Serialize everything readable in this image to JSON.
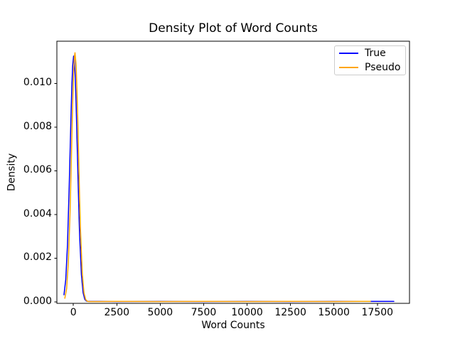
{
  "chart_data": {
    "type": "line",
    "title": "Density Plot of Word Counts",
    "xlabel": "Word Counts",
    "ylabel": "Density",
    "xlim": [
      -950,
      19350
    ],
    "ylim": [
      -7e-05,
      0.01193
    ],
    "grid": false,
    "legend_position": "upper right",
    "x_ticks": [
      0,
      2500,
      5000,
      7500,
      10000,
      12500,
      15000,
      17500
    ],
    "x_tick_labels": [
      "0",
      "2500",
      "5000",
      "7500",
      "10000",
      "12500",
      "15000",
      "17500"
    ],
    "y_ticks": [
      0,
      0.002,
      0.004,
      0.006,
      0.008,
      0.01
    ],
    "y_tick_labels": [
      "0.000",
      "0.002",
      "0.004",
      "0.006",
      "0.008",
      "0.010"
    ],
    "series": [
      {
        "name": "True",
        "color": "#0000ff",
        "peak": {
          "x": 20,
          "y": 0.01125
        },
        "points": [
          [
            -540,
            0.00032
          ],
          [
            -440,
            0.00102
          ],
          [
            -340,
            0.00259
          ],
          [
            -240,
            0.00523
          ],
          [
            -140,
            0.00842
          ],
          [
            -90,
            0.00981
          ],
          [
            -40,
            0.0108
          ],
          [
            10,
            0.01124
          ],
          [
            20,
            0.01125
          ],
          [
            60,
            0.01105
          ],
          [
            110,
            0.01026
          ],
          [
            160,
            0.00901
          ],
          [
            210,
            0.00747
          ],
          [
            260,
            0.00585
          ],
          [
            310,
            0.00434
          ],
          [
            360,
            0.00303
          ],
          [
            460,
            0.00125
          ],
          [
            560,
            0.00041
          ],
          [
            660,
            0.00011
          ],
          [
            760,
            3e-05
          ],
          [
            860,
            2e-05
          ],
          [
            960,
            2e-05
          ],
          [
            1500,
            2e-05
          ],
          [
            2500,
            1e-05
          ],
          [
            5000,
            2e-05
          ],
          [
            7500,
            1e-05
          ],
          [
            10000,
            2e-05
          ],
          [
            12500,
            1e-05
          ],
          [
            15000,
            2e-05
          ],
          [
            17000,
            2e-05
          ],
          [
            18450,
            2e-05
          ]
        ]
      },
      {
        "name": "Pseudo",
        "color": "#ffa500",
        "peak": {
          "x": 95,
          "y": 0.0114
        },
        "points": [
          [
            -490,
            0.00016
          ],
          [
            -390,
            0.0006
          ],
          [
            -290,
            0.00179
          ],
          [
            -190,
            0.00413
          ],
          [
            -90,
            0.00743
          ],
          [
            -40,
            0.00908
          ],
          [
            10,
            0.01042
          ],
          [
            60,
            0.01123
          ],
          [
            95,
            0.0114
          ],
          [
            160,
            0.01081
          ],
          [
            210,
            0.00966
          ],
          [
            260,
            0.00811
          ],
          [
            310,
            0.0064
          ],
          [
            360,
            0.00474
          ],
          [
            410,
            0.0033
          ],
          [
            510,
            0.00132
          ],
          [
            610,
            0.00041
          ],
          [
            710,
            0.0001
          ],
          [
            810,
            2e-05
          ],
          [
            910,
            1e-05
          ],
          [
            1010,
            1e-05
          ],
          [
            1500,
            1e-05
          ],
          [
            2500,
            2e-05
          ],
          [
            5000,
            1e-05
          ],
          [
            7500,
            2e-05
          ],
          [
            10000,
            1e-05
          ],
          [
            12500,
            2e-05
          ],
          [
            15000,
            1e-05
          ],
          [
            17100,
            2e-05
          ]
        ]
      }
    ]
  }
}
